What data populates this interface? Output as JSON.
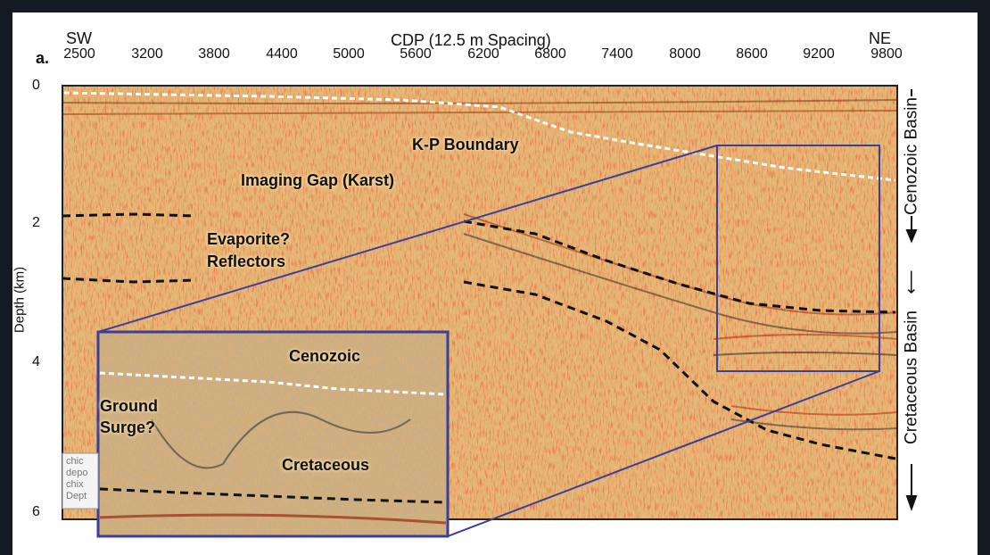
{
  "figure": {
    "panel_label": "a.",
    "top_axis": {
      "title": "CDP (12.5 m Spacing)",
      "left_dir": "SW",
      "right_dir": "NE",
      "ticks": [
        "2500",
        "3200",
        "3800",
        "4400",
        "5000",
        "5600",
        "6200",
        "6800",
        "7400",
        "8000",
        "8600",
        "9200",
        "9800"
      ]
    },
    "left_axis": {
      "title": "Depth (km)",
      "ticks": [
        "0",
        "2",
        "4",
        "6"
      ]
    },
    "right_axis": {
      "upper_label": "Cenozoic Basin",
      "lower_label": "Cretaceous Basin"
    },
    "annotations": {
      "kp_boundary": "K-P Boundary",
      "imaging_gap": "Imaging Gap (Karst)",
      "evaporite_line1": "Evaporite?",
      "evaporite_line2": "Reflectors",
      "cenozoic": "Cenozoic",
      "ground_surge_line1": "Ground",
      "ground_surge_line2": "Surge?",
      "cretaceous": "Cretaceous"
    },
    "legend_fragment": [
      "chic",
      "depo",
      "chix",
      "Dept"
    ],
    "colors": {
      "frame_blue": "#3a3f9a",
      "seismic_base": "#d9a35c",
      "kp_line": "#ffffff",
      "horizon_line": "#111111",
      "page_background": "#141a22"
    }
  }
}
